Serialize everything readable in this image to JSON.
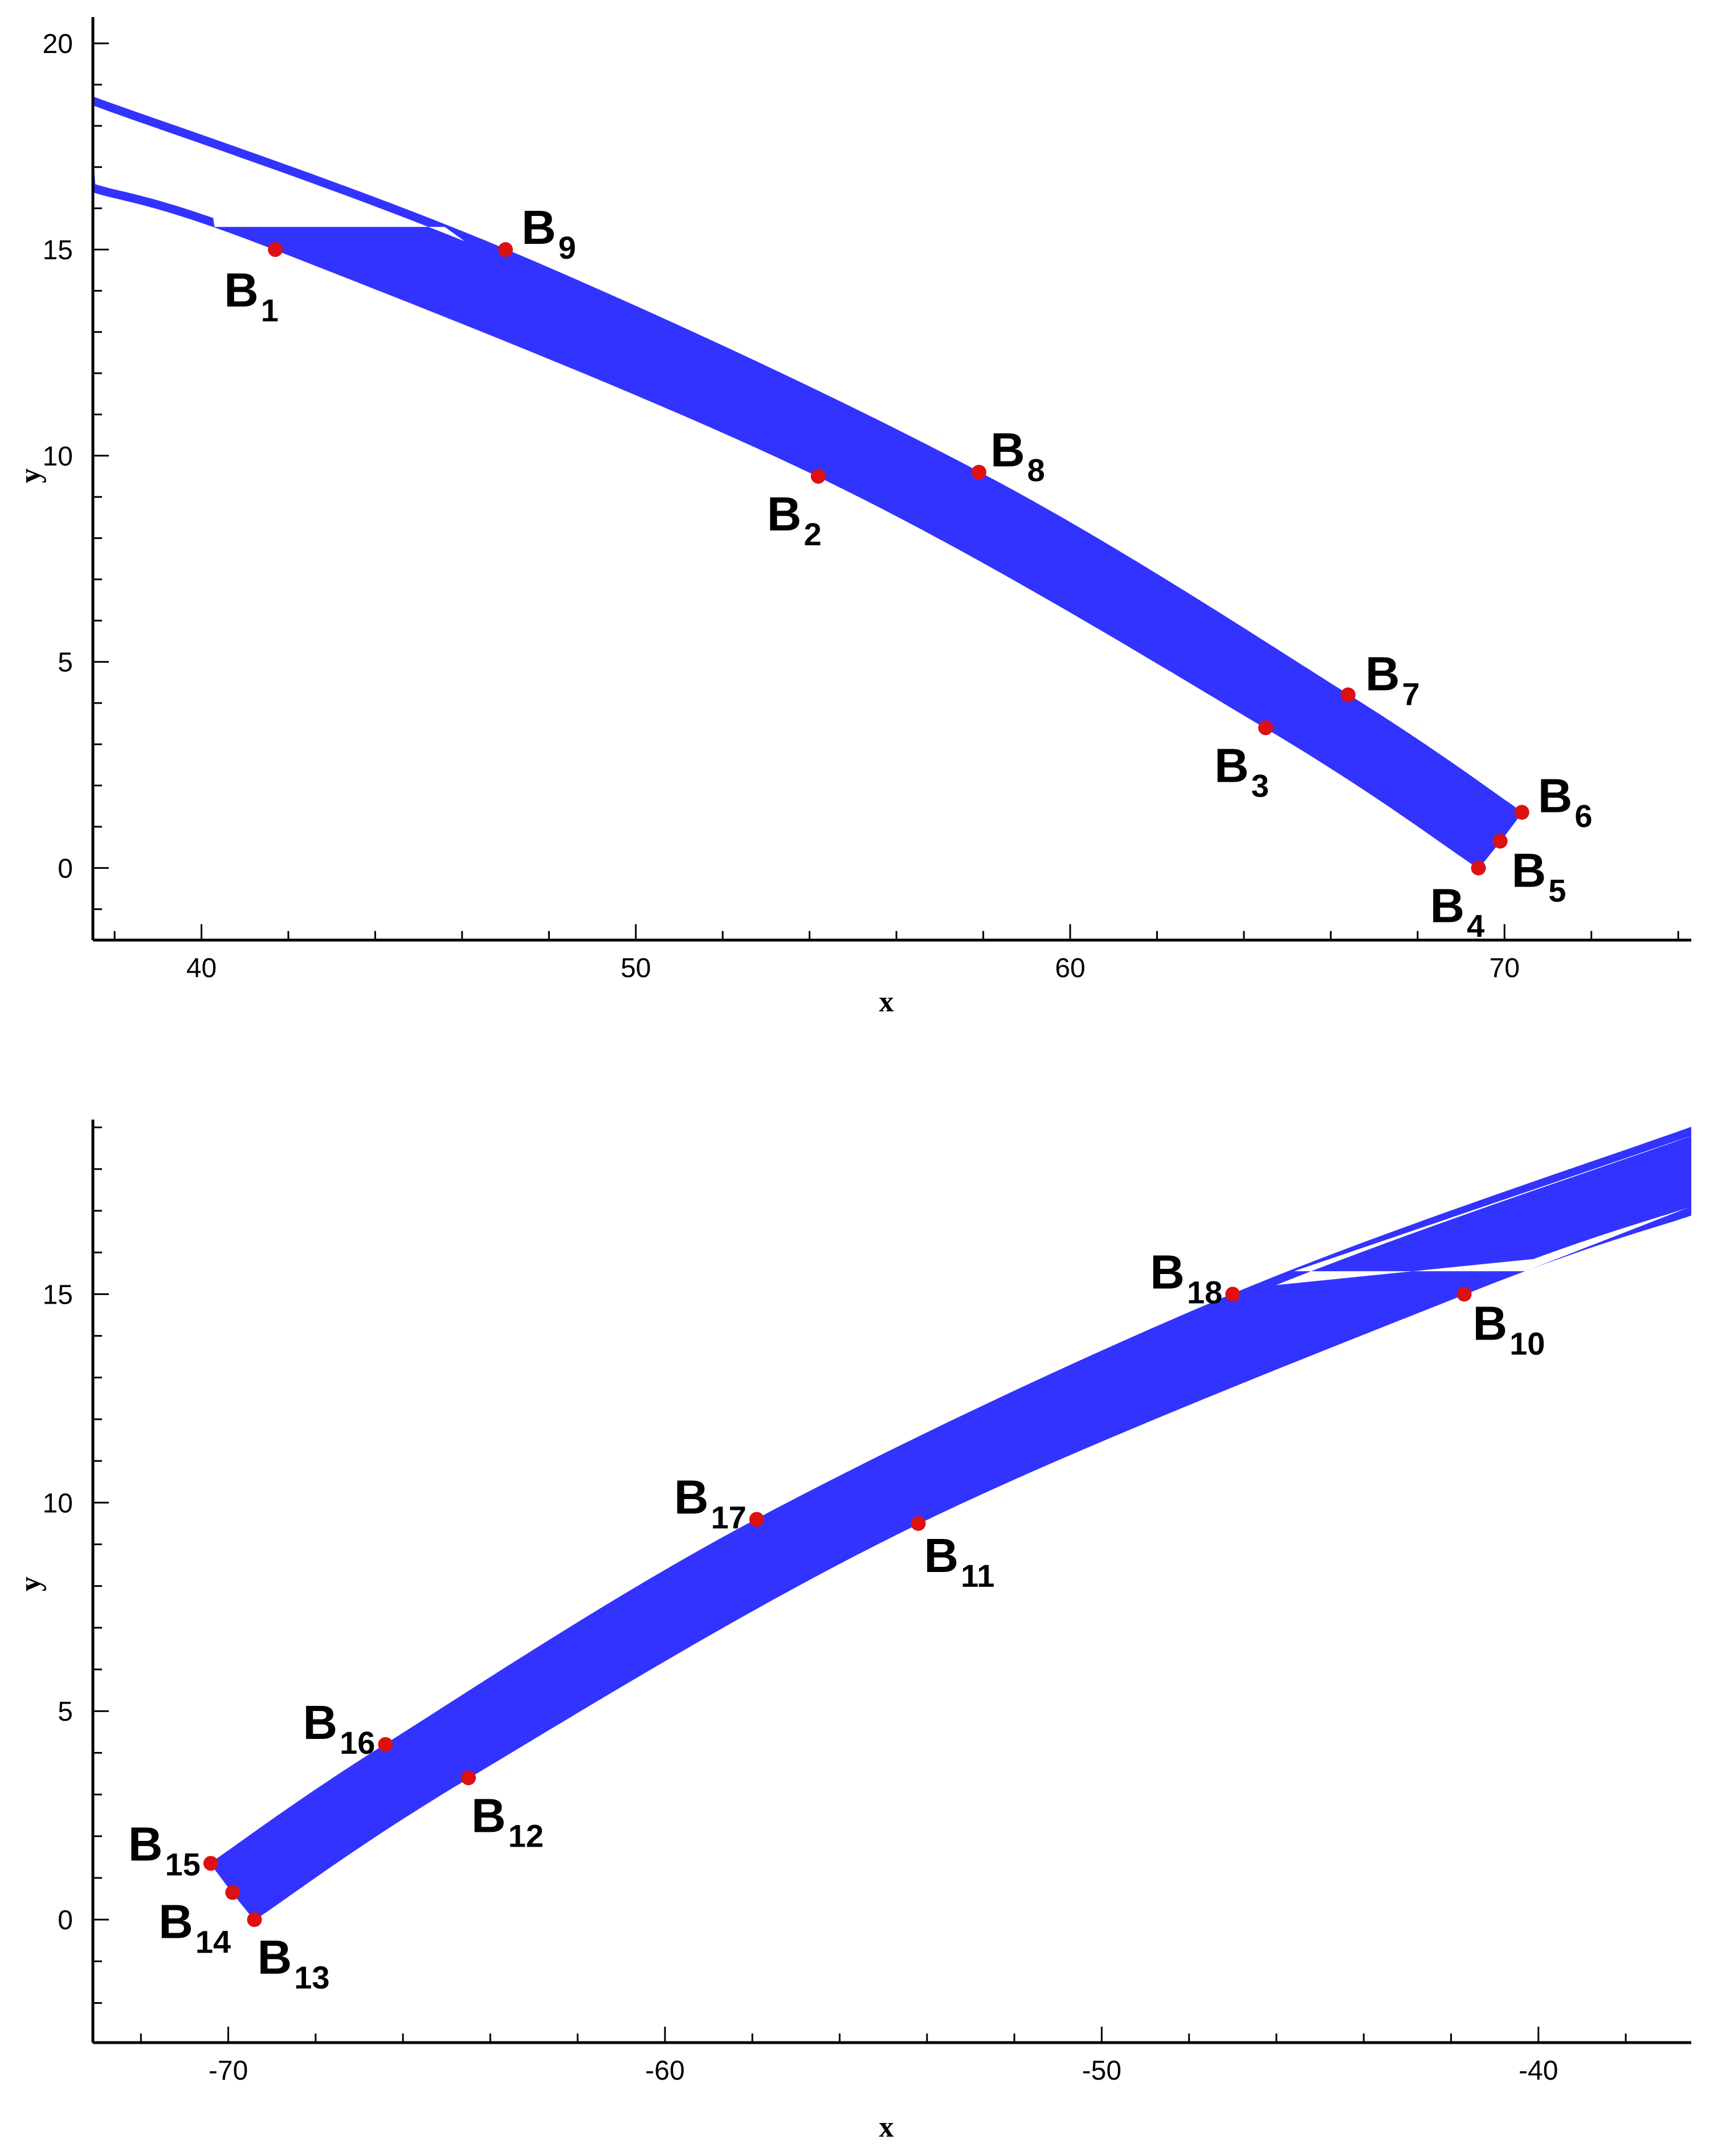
{
  "chart_data": [
    {
      "type": "area",
      "xlabel": "x",
      "ylabel": "y",
      "xlim": [
        37.5,
        74.3
      ],
      "ylim": [
        -1.75,
        20.5
      ],
      "xticks": [
        40,
        50,
        60,
        70
      ],
      "yticks": [
        0,
        5,
        10,
        15,
        20
      ],
      "xtick_labels": [
        "40",
        "50",
        "60",
        "70"
      ],
      "ytick_labels": [
        "0",
        "5",
        "10",
        "15",
        "20"
      ],
      "grid": false,
      "fill_color": "#3333ff",
      "marker_color": "#dd1111",
      "band": {
        "outer_curve": [
          [
            37.5,
            18.7
          ],
          [
            47.0,
            15.0
          ],
          [
            57.9,
            9.6
          ],
          [
            66.4,
            4.2
          ],
          [
            70.4,
            1.35
          ]
        ],
        "inner_curve": [
          [
            37.5,
            16.4
          ],
          [
            41.7,
            15.0
          ],
          [
            54.2,
            9.5
          ],
          [
            64.5,
            3.4
          ],
          [
            69.4,
            0.0
          ]
        ],
        "end_points": [
          [
            69.4,
            0.0
          ],
          [
            69.9,
            0.65
          ],
          [
            70.4,
            1.35
          ]
        ],
        "top_edge": [
          [
            40.3,
            15.55
          ],
          [
            45.6,
            15.55
          ]
        ]
      },
      "points": [
        {
          "main": "B",
          "sub": "1",
          "x": 41.7,
          "y": 15.0
        },
        {
          "main": "B",
          "sub": "2",
          "x": 54.2,
          "y": 9.5
        },
        {
          "main": "B",
          "sub": "3",
          "x": 64.5,
          "y": 3.4
        },
        {
          "main": "B",
          "sub": "4",
          "x": 69.4,
          "y": 0.0
        },
        {
          "main": "B",
          "sub": "5",
          "x": 69.9,
          "y": 0.65
        },
        {
          "main": "B",
          "sub": "6",
          "x": 70.4,
          "y": 1.35
        },
        {
          "main": "B",
          "sub": "7",
          "x": 66.4,
          "y": 4.2
        },
        {
          "main": "B",
          "sub": "8",
          "x": 57.9,
          "y": 9.6
        },
        {
          "main": "B",
          "sub": "9",
          "x": 47.0,
          "y": 15.0
        }
      ]
    },
    {
      "type": "area",
      "xlabel": "x",
      "ylabel": "y",
      "xlim": [
        -73.1,
        -36.5
      ],
      "ylim": [
        -2.95,
        19.05
      ],
      "xticks": [
        -70,
        -60,
        -50,
        -40
      ],
      "yticks": [
        0,
        5,
        10,
        15
      ],
      "xtick_labels": [
        "-70",
        "-60",
        "-50",
        "-40"
      ],
      "ytick_labels": [
        "0",
        "5",
        "10",
        "15"
      ],
      "grid": false,
      "fill_color": "#3333ff",
      "marker_color": "#dd1111",
      "band": {
        "outer_curve": [
          [
            -36.5,
            19.0
          ],
          [
            -47.0,
            15.0
          ],
          [
            -57.9,
            9.6
          ],
          [
            -66.4,
            4.2
          ],
          [
            -70.4,
            1.35
          ]
        ],
        "inner_curve": [
          [
            -36.5,
            16.9
          ],
          [
            -41.7,
            15.0
          ],
          [
            -54.2,
            9.5
          ],
          [
            -64.5,
            3.4
          ],
          [
            -69.4,
            0.0
          ]
        ],
        "end_points": [
          [
            -69.4,
            0.0
          ],
          [
            -69.9,
            0.65
          ],
          [
            -70.4,
            1.35
          ]
        ],
        "top_edge": [
          [
            -45.6,
            15.55
          ],
          [
            -40.3,
            15.55
          ]
        ]
      },
      "points": [
        {
          "main": "B",
          "sub": "10",
          "x": -41.7,
          "y": 15.0
        },
        {
          "main": "B",
          "sub": "11",
          "x": -54.2,
          "y": 9.5
        },
        {
          "main": "B",
          "sub": "12",
          "x": -64.5,
          "y": 3.4
        },
        {
          "main": "B",
          "sub": "13",
          "x": -69.4,
          "y": 0.0
        },
        {
          "main": "B",
          "sub": "14",
          "x": -69.9,
          "y": 0.65
        },
        {
          "main": "B",
          "sub": "15",
          "x": -70.4,
          "y": 1.35
        },
        {
          "main": "B",
          "sub": "16",
          "x": -66.4,
          "y": 4.2
        },
        {
          "main": "B",
          "sub": "17",
          "x": -57.9,
          "y": 9.6
        },
        {
          "main": "B",
          "sub": "18",
          "x": -47.0,
          "y": 15.0
        }
      ]
    }
  ]
}
